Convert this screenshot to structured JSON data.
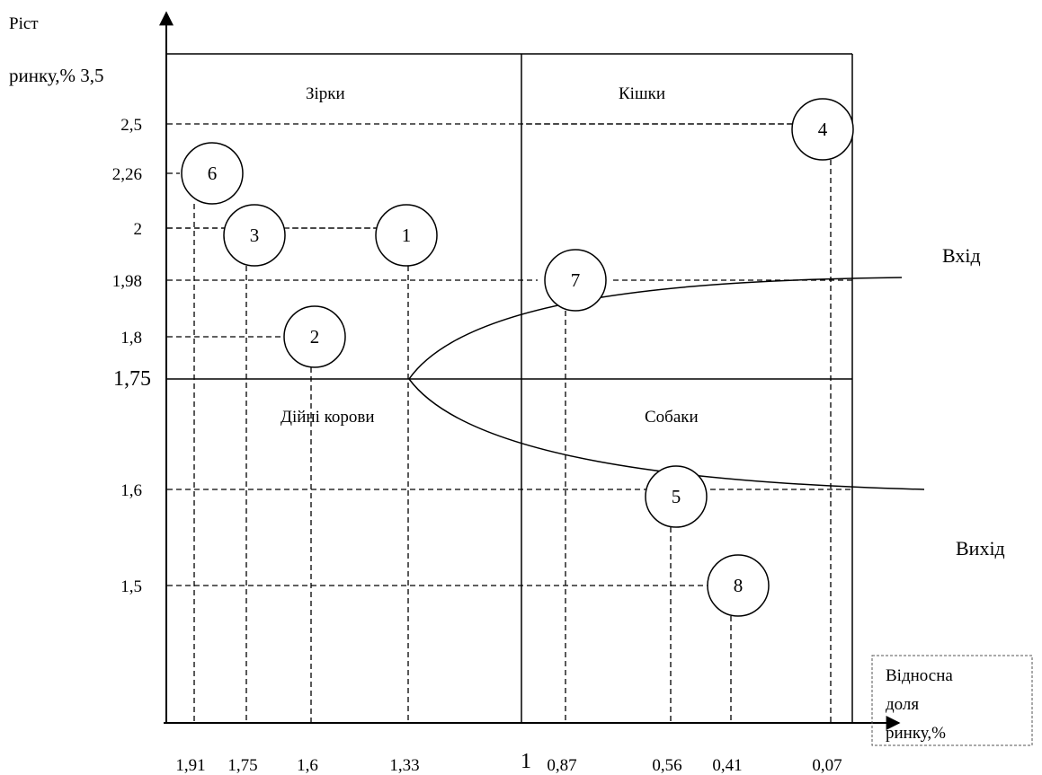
{
  "y_axis_label_line1": "Ріст",
  "y_axis_label_line2": "ринку,% 3,5",
  "x_axis_label_lines": [
    "Відносна",
    "доля",
    "ринку,%"
  ],
  "quadrants": {
    "top_left": "Зірки",
    "top_right": "Кішки",
    "bottom_left": "Дійні корови",
    "bottom_right": "Собаки"
  },
  "curve_labels": {
    "entry": "Вхід",
    "exit": "Вихід"
  },
  "y_ticks": [
    {
      "label": "2,5",
      "value": 2.5
    },
    {
      "label": "2,26",
      "value": 2.26
    },
    {
      "label": "2",
      "value": 2.0
    },
    {
      "label": "1,98",
      "value": 1.98
    },
    {
      "label": "1,8",
      "value": 1.8
    },
    {
      "label": "1,75",
      "value": 1.75
    },
    {
      "label": "1,6",
      "value": 1.6
    },
    {
      "label": "1,5",
      "value": 1.5
    }
  ],
  "x_ticks": [
    {
      "label": "1,91",
      "value": 1.91
    },
    {
      "label": "1,75",
      "value": 1.75
    },
    {
      "label": "1,6",
      "value": 1.6
    },
    {
      "label": "1,33",
      "value": 1.33
    },
    {
      "label": "1",
      "value": 1.0
    },
    {
      "label": "0,87",
      "value": 0.87
    },
    {
      "label": "0,56",
      "value": 0.56
    },
    {
      "label": "0,41",
      "value": 0.41
    },
    {
      "label": "0,07",
      "value": 0.07
    }
  ],
  "points": [
    {
      "id": "1",
      "share": 1.33,
      "growth": 2.0
    },
    {
      "id": "2",
      "share": 1.6,
      "growth": 1.8
    },
    {
      "id": "3",
      "share": 1.75,
      "growth": 2.0
    },
    {
      "id": "4",
      "share": 0.07,
      "growth": 2.5
    },
    {
      "id": "5",
      "share": 0.56,
      "growth": 1.6
    },
    {
      "id": "6",
      "share": 1.91,
      "growth": 2.26
    },
    {
      "id": "7",
      "share": 0.87,
      "growth": 1.98
    },
    {
      "id": "8",
      "share": 0.41,
      "growth": 1.5
    }
  ]
}
